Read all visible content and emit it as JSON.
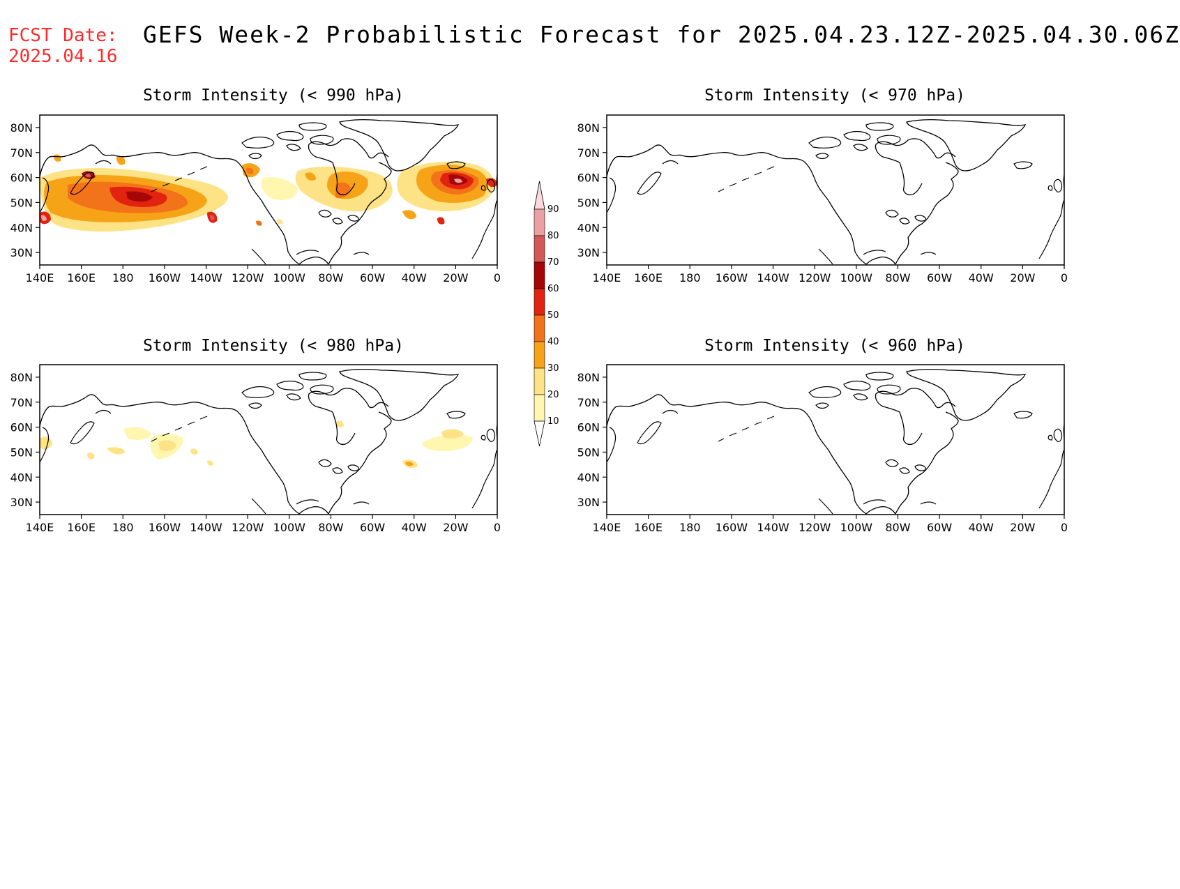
{
  "header": {
    "fcst_label": "FCST Date:",
    "fcst_date": "2025.04.16",
    "title": "GEFS Week-2 Probabilistic Forecast for 2025.04.23.12Z-2025.04.30.06Z"
  },
  "panels": [
    {
      "title": "Storm Intensity (< 990 hPa)",
      "threshold_hpa": 990
    },
    {
      "title": "Storm Intensity (< 970 hPa)",
      "threshold_hpa": 970
    },
    {
      "title": "Storm Intensity (< 980 hPa)",
      "threshold_hpa": 980
    },
    {
      "title": "Storm Intensity (< 960 hPa)",
      "threshold_hpa": 960
    }
  ],
  "axes": {
    "lat_labels": [
      "80N",
      "70N",
      "60N",
      "50N",
      "40N",
      "30N"
    ],
    "lon_labels": [
      "140E",
      "160E",
      "180",
      "160W",
      "140W",
      "120W",
      "100W",
      "80W",
      "60W",
      "40W",
      "20W",
      "0"
    ]
  },
  "colorbar": {
    "levels": [
      "10",
      "20",
      "30",
      "40",
      "50",
      "60",
      "70",
      "80",
      "90"
    ],
    "colors": [
      "#fff6b0",
      "#fde385",
      "#f7a318",
      "#f3731a",
      "#e2230f",
      "#a50707",
      "#d35859",
      "#eba1a3",
      "#fcd9dd"
    ]
  }
}
